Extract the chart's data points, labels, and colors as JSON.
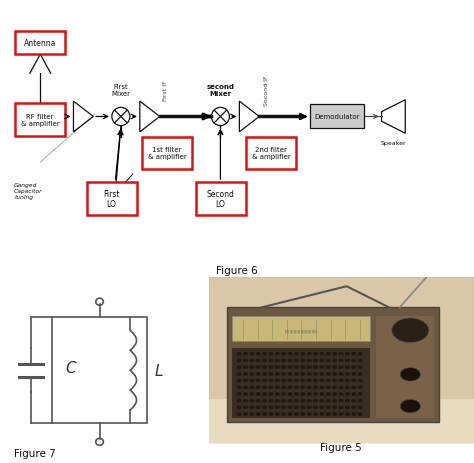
{
  "background_color": "#ffffff",
  "figure_width": 4.74,
  "figure_height": 4.64,
  "dpi": 100,
  "fig6_label": "Figure 6",
  "fig7_label": "Figure 7",
  "fig5_label": "Figure 5",
  "red_color": "#dd1111",
  "black_color": "#111111",
  "dark_gray": "#444444",
  "demod_gray": "#888888"
}
